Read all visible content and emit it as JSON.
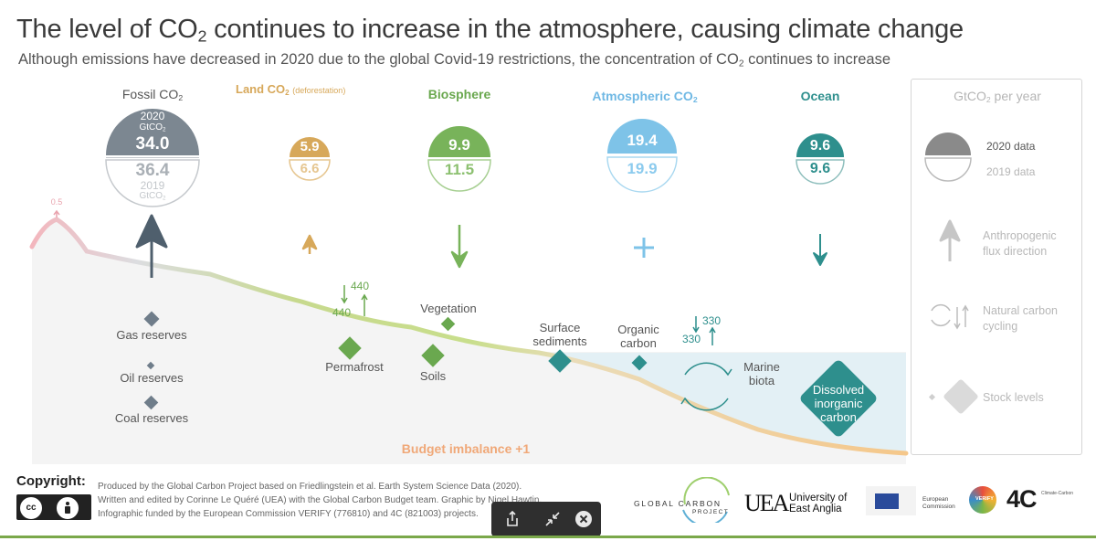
{
  "title": {
    "pre": "The level of CO",
    "sub": "2",
    "post": " continues to increase in the atmosphere, causing climate change"
  },
  "subtitle": {
    "pre": "Although emissions have decreased in 2020 due to the global Covid-19 restrictions, the concentration of CO",
    "sub": "2",
    "post": " continues to increase"
  },
  "fossil": {
    "h_pre": "Fossil CO",
    "h_sub": "2",
    "y2020": "2020",
    "unit_pre": "GtCO",
    "unit_sub": "2",
    "v2020": "34.0",
    "v2019": "36.4",
    "y2019": "2019",
    "unit2_pre": "GtCO",
    "unit2_sub": "2"
  },
  "land": {
    "h_pre": "Land CO",
    "h_sub": "2",
    "h_note": "(deforestation)",
    "v2020": "5.9",
    "v2019": "6.6"
  },
  "biosphere": {
    "h": "Biosphere",
    "v2020": "9.9",
    "v2019": "11.5"
  },
  "atmos": {
    "h_pre": "Atmospheric CO",
    "h_sub": "2",
    "v2020": "19.4",
    "v2019": "19.9"
  },
  "ocean": {
    "h": "Ocean",
    "v2020": "9.6",
    "v2019": "9.6"
  },
  "peak": "0.5",
  "stocks": {
    "gas": "Gas reserves",
    "oil": "Oil reserves",
    "coal": "Coal reserves",
    "permafrost": "Permafrost",
    "vegetation": "Vegetation",
    "soils": "Soils",
    "surface_sediments": "Surface sediments",
    "organic_carbon": "Organic carbon",
    "marine_biota": "Marine biota",
    "dissolved": "Dissolved inorganic carbon"
  },
  "land_cycle": {
    "down": "440",
    "up": "440"
  },
  "ocean_cycle": {
    "down": "330",
    "up": "330"
  },
  "budget": "Budget imbalance +1",
  "legend": {
    "title_pre": "GtCO",
    "title_sub": "2",
    "title_post": " per year",
    "d2020": "2020 data",
    "d2019": "2019 data",
    "anthro": "Anthropogenic flux direction",
    "natural": "Natural carbon cycling",
    "stock": "Stock levels"
  },
  "footer": {
    "copyright": "Copyright:",
    "line1": "Produced by the Global Carbon Project based on Friedlingstein et al. Earth System Science Data (2020).",
    "line2": "Written and edited by Corinne Le Quéré (UEA) with the Global Carbon Budget team. Graphic by Nigel Hawtin.",
    "line3": "Infographic funded by the European Commission VERIFY (776810) and 4C (821003) projects.",
    "cc1": "cc",
    "cc2": "BY",
    "gcp1": "GLOBAL CARBON",
    "gcp2": "PROJECT",
    "uea_mark": "UEA",
    "uea1": "University of",
    "uea2": "East Anglia",
    "ec1": "European",
    "ec2": "Commission",
    "verify": "VERIFY",
    "fourc": "4C",
    "fourc_txt": "Climate-Carbon"
  },
  "colors": {
    "fossil": "#7c8791",
    "land": "#d7a85a",
    "bio": "#78b35a",
    "atmos": "#7ec3e8",
    "ocean": "#2e8f8d",
    "budget": "#f2b185"
  }
}
